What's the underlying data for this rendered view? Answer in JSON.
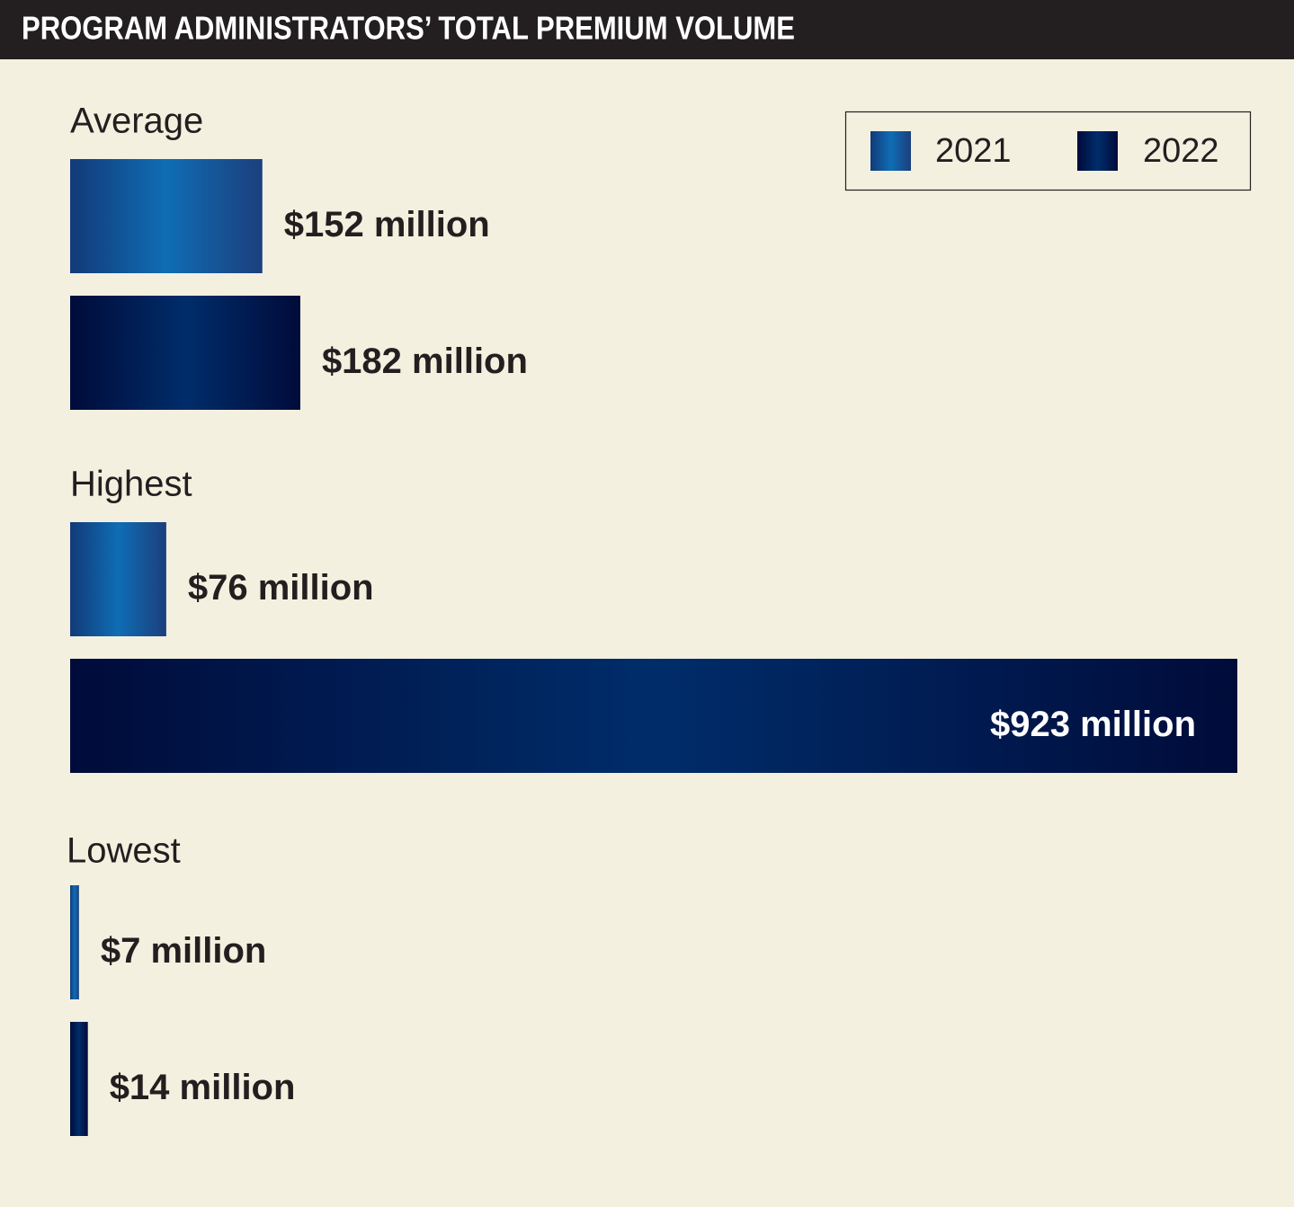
{
  "chart_data": {
    "type": "hbar",
    "title": "PROGRAM ADMINISTRATORS’ TOTAL PREMIUM VOLUME",
    "categories": [
      "Average",
      "Highest",
      "Lowest"
    ],
    "series": [
      {
        "name": "2021",
        "color": "#0f6db4",
        "values": [
          152,
          76,
          7
        ],
        "value_labels": [
          "$152 million",
          "$76 million",
          "$7 million"
        ]
      },
      {
        "name": "2022",
        "color": "#002d6a",
        "values": [
          182,
          923,
          14
        ],
        "value_labels": [
          "$182 million",
          "$923 million",
          "$14 million"
        ]
      }
    ],
    "legend": "top-right"
  }
}
